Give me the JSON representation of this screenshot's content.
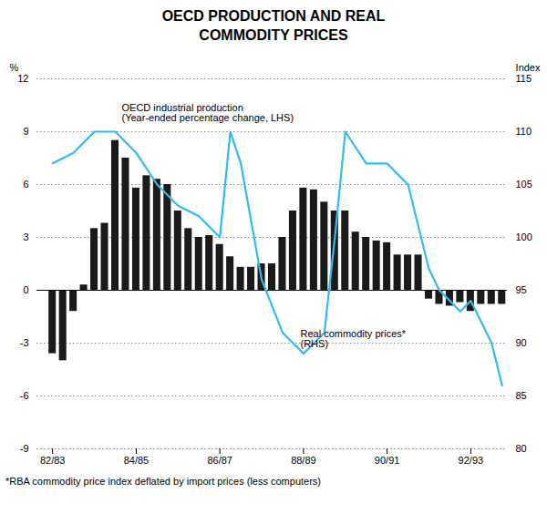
{
  "chart_data": {
    "type": "bar",
    "title": "OECD PRODUCTION AND REAL\nCOMMODITY PRICES",
    "footnote": "*RBA commodity price index deflated by import prices (less computers)",
    "categories": [
      "82/83",
      null,
      null,
      null,
      null,
      null,
      null,
      null,
      "84/85",
      null,
      null,
      null,
      null,
      null,
      null,
      null,
      "86/87",
      null,
      null,
      null,
      null,
      null,
      null,
      null,
      "88/89",
      null,
      null,
      null,
      null,
      null,
      null,
      null,
      "90/91",
      null,
      null,
      null,
      null,
      null,
      null,
      null,
      "92/93",
      null,
      null,
      null
    ],
    "series": [
      {
        "type": "bar",
        "color": "#1a1a1a",
        "values": [
          -3.6,
          -4.0,
          -1.2,
          0.3,
          3.5,
          3.8,
          8.5,
          7.5,
          5.8,
          6.5,
          6.3,
          6.0,
          4.5,
          3.5,
          3.0,
          3.1,
          2.6,
          1.9,
          1.3,
          1.3,
          1.5,
          1.5,
          3.0,
          4.5,
          5.8,
          5.7,
          5.0,
          4.5,
          4.5,
          3.3,
          3.0,
          2.8,
          2.7,
          2.0,
          2.0,
          2.0,
          -0.5,
          -0.8,
          -0.9,
          -0.7,
          -1.2,
          -0.8,
          -0.8,
          -0.8
        ]
      },
      {
        "type": "line",
        "axis": "y2",
        "color": "#33bbee",
        "x": [
          0,
          2,
          4,
          6,
          8,
          10,
          12,
          14,
          16,
          17,
          18,
          20,
          22,
          24,
          26,
          27,
          28,
          30,
          32,
          33,
          34,
          36,
          37,
          38,
          39,
          40,
          41,
          42,
          43
        ],
        "values": [
          107,
          108,
          110,
          110,
          108,
          105,
          103,
          102,
          100,
          110,
          107,
          96,
          91,
          89,
          91,
          100,
          110,
          107,
          107,
          106,
          105,
          97,
          95,
          94,
          93,
          94,
          92,
          90,
          86
        ]
      }
    ],
    "annotations": [
      "OECD industrial production\n(Year-ended percentage change, LHS)",
      "Real commodity prices*\n(RHS)"
    ],
    "ylabel": "%",
    "y2label": "Index",
    "ylim": [
      -9,
      12
    ],
    "yticks": [
      -9,
      -6,
      -3,
      0,
      3,
      6,
      9,
      12
    ],
    "y2lim": [
      80,
      115
    ],
    "y2ticks": [
      80,
      85,
      90,
      95,
      100,
      105,
      110,
      115
    ],
    "grid": true
  }
}
